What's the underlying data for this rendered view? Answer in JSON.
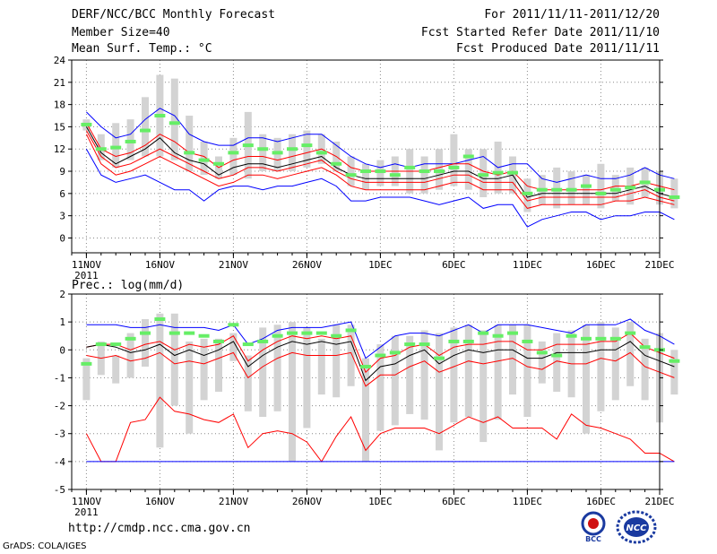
{
  "header": {
    "title": "DERF/NCC/BCC Monthly Forecast",
    "member_size": "Member Size=40",
    "variable": "Mean Surf. Temp.: °C",
    "period": "For 2011/11/11-2011/12/20",
    "start_date": "Fcst Started Refer Date 2011/11/10",
    "produced_date": "Fcst Produced Date 2011/11/11"
  },
  "footer": {
    "url": "http://cmdp.ncc.cma.gov.cn",
    "credit": "GrADS: COLA/IGES",
    "logo_bcc": "BCC",
    "logo_ncc": "NCC"
  },
  "colors": {
    "mean": "#000000",
    "spread": "#ff0000",
    "extreme": "#0000ff",
    "box": "#d3d3d3",
    "marker": "#66ee66",
    "grid": "#888888"
  },
  "chart_data": [
    {
      "type": "line",
      "name": "temperature",
      "ylabel": "Mean Surf. Temp.: °C",
      "ylim": [
        -2,
        24
      ],
      "yticks": [
        0,
        3,
        6,
        9,
        12,
        15,
        18,
        21,
        24
      ],
      "ytick_labels": [
        "0",
        "3",
        "6",
        "9",
        "12",
        "15",
        "18",
        "21",
        "24"
      ],
      "xlim": [
        -1,
        39
      ],
      "xticks": [
        0,
        5,
        10,
        15,
        20,
        25,
        30,
        35,
        39
      ],
      "xtick_labels": [
        "11NOV",
        "16NOV",
        "21NOV",
        "26NOV",
        "1DEC",
        "6DEC",
        "11DEC",
        "16DEC",
        "21DEC"
      ],
      "year_label": "2011",
      "grid": true,
      "series": [
        {
          "name": "max",
          "values": [
            17,
            15,
            13.5,
            14,
            16,
            17.5,
            16.5,
            14,
            13,
            12.5,
            12.5,
            13.5,
            13.5,
            13,
            13.5,
            14,
            14,
            12.5,
            11,
            10,
            9.5,
            10,
            9.5,
            10,
            10,
            10,
            10.5,
            11,
            9.5,
            10,
            10,
            8,
            7.5,
            8,
            8.5,
            8,
            8,
            8.5,
            9.5,
            8.5,
            8
          ]
        },
        {
          "name": "upper",
          "values": [
            15.5,
            12,
            11,
            11.5,
            12.5,
            14,
            13,
            11.5,
            11,
            9.5,
            10.5,
            11,
            11,
            10.5,
            11,
            11.5,
            12,
            11,
            9.5,
            9,
            9,
            9,
            9,
            9,
            9.5,
            10,
            10,
            9,
            8.5,
            9,
            7,
            6.5,
            6.5,
            6.5,
            6.5,
            6.5,
            7,
            7,
            7.5,
            7,
            6.5
          ]
        },
        {
          "name": "mean",
          "values": [
            15,
            11.5,
            10,
            11,
            12,
            13.5,
            11.5,
            10.5,
            10,
            8.5,
            9.5,
            10,
            10,
            9.5,
            10,
            10.5,
            11,
            9.5,
            8.5,
            8,
            8,
            8,
            8,
            8,
            8.5,
            9,
            9,
            8,
            8,
            8.5,
            5.5,
            6,
            6,
            6,
            6,
            6,
            6,
            6.5,
            7,
            6,
            5.5
          ]
        },
        {
          "name": "lower",
          "values": [
            14.5,
            11,
            9.5,
            10,
            11,
            12,
            11,
            10,
            9,
            8,
            8.5,
            9.5,
            9.5,
            9,
            9.5,
            10,
            10.5,
            9,
            8,
            7.5,
            7.5,
            7.5,
            7.5,
            7.5,
            8,
            8.5,
            8.5,
            7.5,
            7.5,
            7.5,
            5,
            5.5,
            5.5,
            5.5,
            5.5,
            5.5,
            5.5,
            6,
            6.5,
            5.5,
            5
          ]
        },
        {
          "name": "lower2",
          "values": [
            14,
            10,
            8.5,
            9,
            10,
            11,
            10,
            9,
            8,
            7,
            7.5,
            8.5,
            8.5,
            8,
            8.5,
            9,
            9.5,
            8.5,
            7,
            6.5,
            6.5,
            6.5,
            6.5,
            6.5,
            7,
            7.5,
            7.5,
            6.5,
            6.5,
            6.5,
            4,
            4.5,
            4.5,
            4.5,
            4.5,
            4.5,
            5,
            5,
            5.5,
            5,
            4.5
          ]
        },
        {
          "name": "min",
          "values": [
            12,
            8.5,
            7.5,
            8,
            8.5,
            7.5,
            6.5,
            6.5,
            5,
            6.5,
            7,
            7,
            6.5,
            7,
            7,
            7.5,
            8,
            7,
            5,
            5,
            5.5,
            5.5,
            5.5,
            5,
            4.5,
            5,
            5.5,
            4,
            4.5,
            4.5,
            1.5,
            2.5,
            3,
            3.5,
            3.5,
            2.5,
            3,
            3,
            3.5,
            3.5,
            2.5
          ]
        },
        {
          "name": "box_top",
          "values": [
            16,
            14,
            15.5,
            16,
            19,
            22,
            21.5,
            16.5,
            13,
            11,
            13.5,
            17,
            14,
            13.5,
            14,
            14.5,
            14,
            13,
            11,
            10,
            10.5,
            11,
            12,
            11,
            12,
            14,
            12,
            12,
            13,
            11,
            8,
            8.5,
            9.5,
            9,
            8.5,
            10,
            8.5,
            9.5,
            9.5,
            9,
            8
          ]
        },
        {
          "name": "box_bottom",
          "values": [
            14.5,
            10.5,
            9.5,
            10.5,
            11,
            11,
            10.5,
            9,
            8.5,
            8,
            8.5,
            8,
            9,
            9,
            9,
            9.5,
            10,
            9,
            7,
            6.5,
            7,
            7,
            6,
            6,
            6.5,
            7,
            6.5,
            5.5,
            6,
            6,
            3.5,
            4.5,
            4,
            4.5,
            4.5,
            4,
            5,
            4.5,
            5.5,
            4.5,
            4
          ]
        },
        {
          "name": "observed",
          "values": [
            15.3,
            12,
            12.2,
            13,
            14.5,
            16.5,
            15.5,
            11.5,
            10.5,
            10,
            11.5,
            12.5,
            12,
            11.5,
            12,
            12.5,
            11.5,
            10,
            8.5,
            9,
            9,
            8.5,
            9.5,
            9,
            9,
            9.5,
            11,
            8.5,
            8.8,
            8.8,
            6,
            6.5,
            6.5,
            6.5,
            7,
            6,
            6.5,
            6.8,
            7.5,
            6.5,
            5.5
          ]
        }
      ]
    },
    {
      "type": "line",
      "name": "precipitation",
      "ylabel": "Prec.: log(mm/d)",
      "ylim": [
        -5,
        2
      ],
      "yticks": [
        -5,
        -4,
        -3,
        -2,
        -1,
        0,
        1,
        2
      ],
      "ytick_labels": [
        "-5",
        "-4",
        "-3",
        "-2",
        "-1",
        "0",
        "1",
        "2"
      ],
      "xlim": [
        -1,
        39
      ],
      "xticks": [
        0,
        5,
        10,
        15,
        20,
        25,
        30,
        35,
        39
      ],
      "xtick_labels": [
        "11NOV",
        "16NOV",
        "21NOV",
        "26NOV",
        "1DEC",
        "6DEC",
        "11DEC",
        "16DEC",
        "21DEC"
      ],
      "year_label": "2011",
      "grid": true,
      "series": [
        {
          "name": "max",
          "values": [
            0.9,
            0.9,
            0.9,
            0.8,
            0.8,
            0.9,
            0.8,
            0.8,
            0.8,
            0.7,
            0.9,
            0.2,
            0.4,
            0.7,
            0.8,
            0.8,
            0.8,
            0.9,
            1.0,
            -0.3,
            0.1,
            0.5,
            0.6,
            0.6,
            0.5,
            0.7,
            0.9,
            0.6,
            0.9,
            0.9,
            0.9,
            0.8,
            0.7,
            0.6,
            0.9,
            0.9,
            0.9,
            1.1,
            0.7,
            0.5,
            0.2
          ]
        },
        {
          "name": "upper",
          "values": [
            0.1,
            0.2,
            0.2,
            0.0,
            0.2,
            0.3,
            0.0,
            0.2,
            0.1,
            0.2,
            0.5,
            -0.4,
            0.0,
            0.3,
            0.5,
            0.4,
            0.5,
            0.4,
            0.5,
            -0.8,
            -0.3,
            -0.2,
            0.1,
            0.2,
            -0.2,
            0.1,
            0.2,
            0.2,
            0.3,
            0.3,
            0.0,
            0.0,
            0.2,
            0.2,
            0.2,
            0.3,
            0.3,
            0.6,
            0.1,
            -0.1,
            -0.3
          ]
        },
        {
          "name": "mean",
          "values": [
            0.1,
            0.2,
            0.1,
            -0.1,
            0.0,
            0.2,
            -0.2,
            0.0,
            -0.2,
            0.0,
            0.3,
            -0.6,
            -0.2,
            0.1,
            0.3,
            0.2,
            0.3,
            0.2,
            0.3,
            -1.1,
            -0.6,
            -0.5,
            -0.2,
            0.0,
            -0.5,
            -0.2,
            0.0,
            -0.1,
            0.0,
            0.0,
            -0.3,
            -0.3,
            -0.1,
            -0.1,
            -0.1,
            0.0,
            0.0,
            0.3,
            -0.2,
            -0.4,
            -0.6
          ]
        },
        {
          "name": "lower",
          "values": [
            -0.2,
            -0.3,
            -0.2,
            -0.4,
            -0.3,
            -0.1,
            -0.5,
            -0.4,
            -0.5,
            -0.3,
            -0.1,
            -1.0,
            -0.6,
            -0.3,
            -0.1,
            -0.2,
            -0.2,
            -0.2,
            -0.1,
            -1.3,
            -0.9,
            -0.9,
            -0.6,
            -0.4,
            -0.8,
            -0.6,
            -0.4,
            -0.5,
            -0.4,
            -0.3,
            -0.6,
            -0.7,
            -0.4,
            -0.5,
            -0.5,
            -0.3,
            -0.4,
            -0.1,
            -0.6,
            -0.8,
            -1.0
          ]
        },
        {
          "name": "min",
          "values": [
            -3.0,
            -4.0,
            -4.0,
            -2.6,
            -2.5,
            -1.7,
            -2.2,
            -2.3,
            -2.5,
            -2.6,
            -2.3,
            -3.5,
            -3.0,
            -2.9,
            -3.0,
            -3.3,
            -4.0,
            -3.1,
            -2.4,
            -3.6,
            -3.0,
            -2.8,
            -2.8,
            -2.8,
            -3.0,
            -2.7,
            -2.4,
            -2.6,
            -2.4,
            -2.8,
            -2.8,
            -2.8,
            -3.2,
            -2.3,
            -2.7,
            -2.8,
            -3.0,
            -3.2,
            -3.7,
            -3.7,
            -4.0
          ]
        },
        {
          "name": "floor",
          "values": [
            -4,
            -4,
            -4,
            -4,
            -4,
            -4,
            -4,
            -4,
            -4,
            -4,
            -4,
            -4,
            -4,
            -4,
            -4,
            -4,
            -4,
            -4,
            -4,
            -4,
            -4,
            -4,
            -4,
            -4,
            -4,
            -4,
            -4,
            -4,
            -4,
            -4,
            -4,
            -4,
            -4,
            -4,
            -4,
            -4,
            -4,
            -4,
            -4,
            -4,
            -4
          ]
        },
        {
          "name": "box_top",
          "values": [
            -0.3,
            0.3,
            -0.2,
            0.6,
            1.1,
            1.3,
            1.3,
            0.3,
            0.4,
            0.4,
            0.6,
            -0.2,
            0.8,
            0.9,
            1.0,
            0.8,
            0.4,
            0.9,
            0.9,
            -0.3,
            0.2,
            0.5,
            0.5,
            0.7,
            0.6,
            0.8,
            0.9,
            0.7,
            0.9,
            0.9,
            0.9,
            0.3,
            0.6,
            0.7,
            0.9,
            1.0,
            0.8,
            1.0,
            0.4,
            0.6,
            0.0
          ]
        },
        {
          "name": "box_bottom",
          "values": [
            -1.8,
            -0.9,
            -1.2,
            -1.0,
            -0.6,
            -3.5,
            -2.0,
            -3.0,
            -1.8,
            -1.5,
            -0.4,
            -2.2,
            -2.4,
            -2.2,
            -4.0,
            -2.8,
            -1.6,
            -1.7,
            -1.3,
            -4.0,
            -2.9,
            -2.7,
            -2.3,
            -2.5,
            -3.6,
            -2.6,
            -2.4,
            -3.3,
            -2.5,
            -1.6,
            -2.4,
            -1.2,
            -1.5,
            -1.7,
            -3.0,
            -2.2,
            -1.8,
            -1.3,
            -1.8,
            -2.6,
            -1.6
          ]
        },
        {
          "name": "observed",
          "values": [
            -0.5,
            0.2,
            0.2,
            0.4,
            0.6,
            1.1,
            0.6,
            0.6,
            0.5,
            0.3,
            0.9,
            0.2,
            0.3,
            0.5,
            0.6,
            0.6,
            0.6,
            0.5,
            0.7,
            -0.6,
            -0.2,
            -0.1,
            0.2,
            0.2,
            -0.3,
            0.3,
            0.3,
            0.6,
            0.5,
            0.6,
            0.3,
            -0.1,
            -0.2,
            0.5,
            0.4,
            0.4,
            0.4,
            0.6,
            0.1,
            0.0,
            -0.4
          ]
        }
      ]
    }
  ]
}
